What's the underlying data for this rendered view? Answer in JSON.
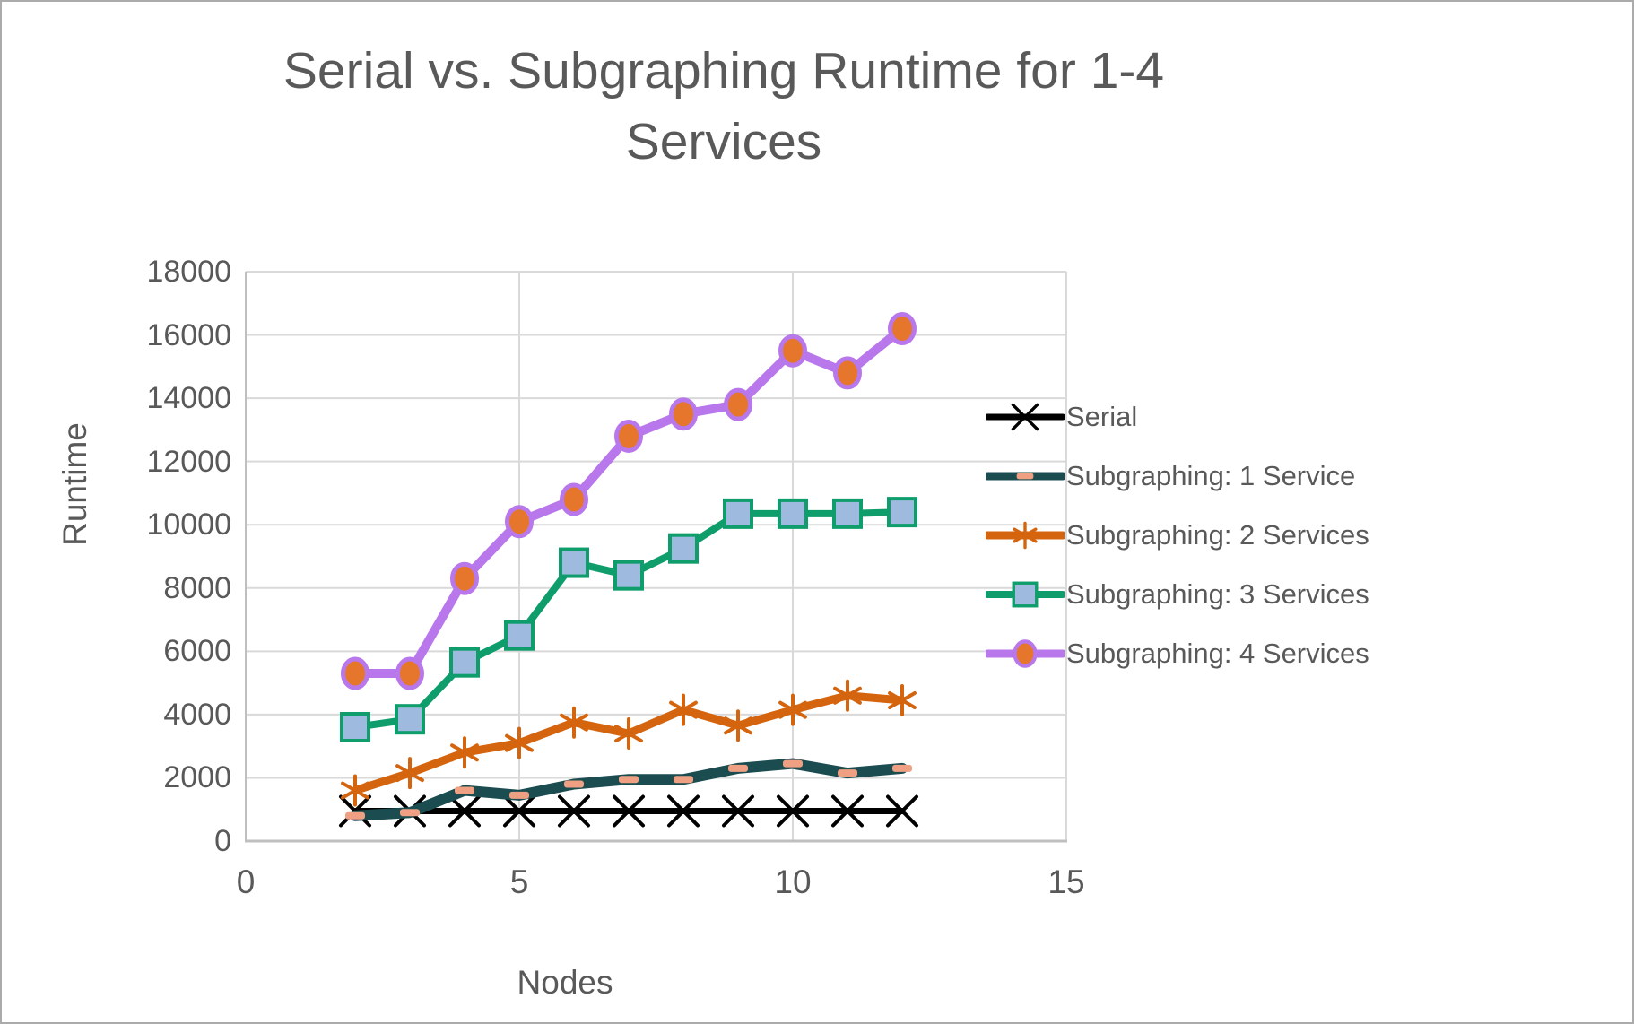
{
  "window": {
    "background": "#ffffff",
    "border_color": "#ababab"
  },
  "chart_data": {
    "type": "line",
    "title": "Serial vs. Subgraphing Runtime for 1-4 Services",
    "xlabel": "Nodes",
    "ylabel": "Runtime",
    "xlim": [
      0,
      15
    ],
    "ylim": [
      0,
      18000
    ],
    "x_ticks": [
      0,
      5,
      10,
      15
    ],
    "y_ticks": [
      0,
      2000,
      4000,
      6000,
      8000,
      10000,
      12000,
      14000,
      16000,
      18000
    ],
    "grid": true,
    "legend_position": "right",
    "x": [
      2,
      3,
      4,
      5,
      6,
      7,
      8,
      9,
      10,
      11,
      12
    ],
    "series": [
      {
        "name": "Serial",
        "color": "#000000",
        "marker": "x",
        "marker_color": "#000000",
        "line_width": 7,
        "values": [
          950,
          950,
          950,
          950,
          950,
          950,
          950,
          950,
          950,
          950,
          950
        ]
      },
      {
        "name": "Subgraphing: 1 Service",
        "color": "#1a4c50",
        "marker": "dash",
        "marker_color": "#efa082",
        "line_width": 12,
        "values": [
          800,
          900,
          1600,
          1450,
          1800,
          1950,
          1950,
          2300,
          2450,
          2150,
          2300
        ]
      },
      {
        "name": "Subgraphing: 2 Services",
        "color": "#d4650e",
        "marker": "asterisk",
        "marker_color": "#d4650e",
        "line_width": 9,
        "values": [
          1600,
          2150,
          2800,
          3100,
          3750,
          3400,
          4150,
          3650,
          4150,
          4600,
          4450
        ]
      },
      {
        "name": "Subgraphing: 3 Services",
        "color": "#0f9d6c",
        "marker": "square",
        "marker_fill": "#9fbadf",
        "line_width": 8,
        "values": [
          3600,
          3850,
          5650,
          6500,
          8800,
          8400,
          9250,
          10350,
          10350,
          10350,
          10400
        ]
      },
      {
        "name": "Subgraphing: 4 Services",
        "color": "#b877eb",
        "marker": "circle",
        "marker_fill": "#e5762b",
        "line_width": 10,
        "values": [
          5300,
          5300,
          8300,
          10100,
          10800,
          12800,
          13500,
          13800,
          15500,
          14800,
          16200
        ]
      }
    ],
    "colors": {
      "gridline": "#d9d9d9",
      "axis_line": "#bfbfbf",
      "text": "#595959"
    }
  }
}
